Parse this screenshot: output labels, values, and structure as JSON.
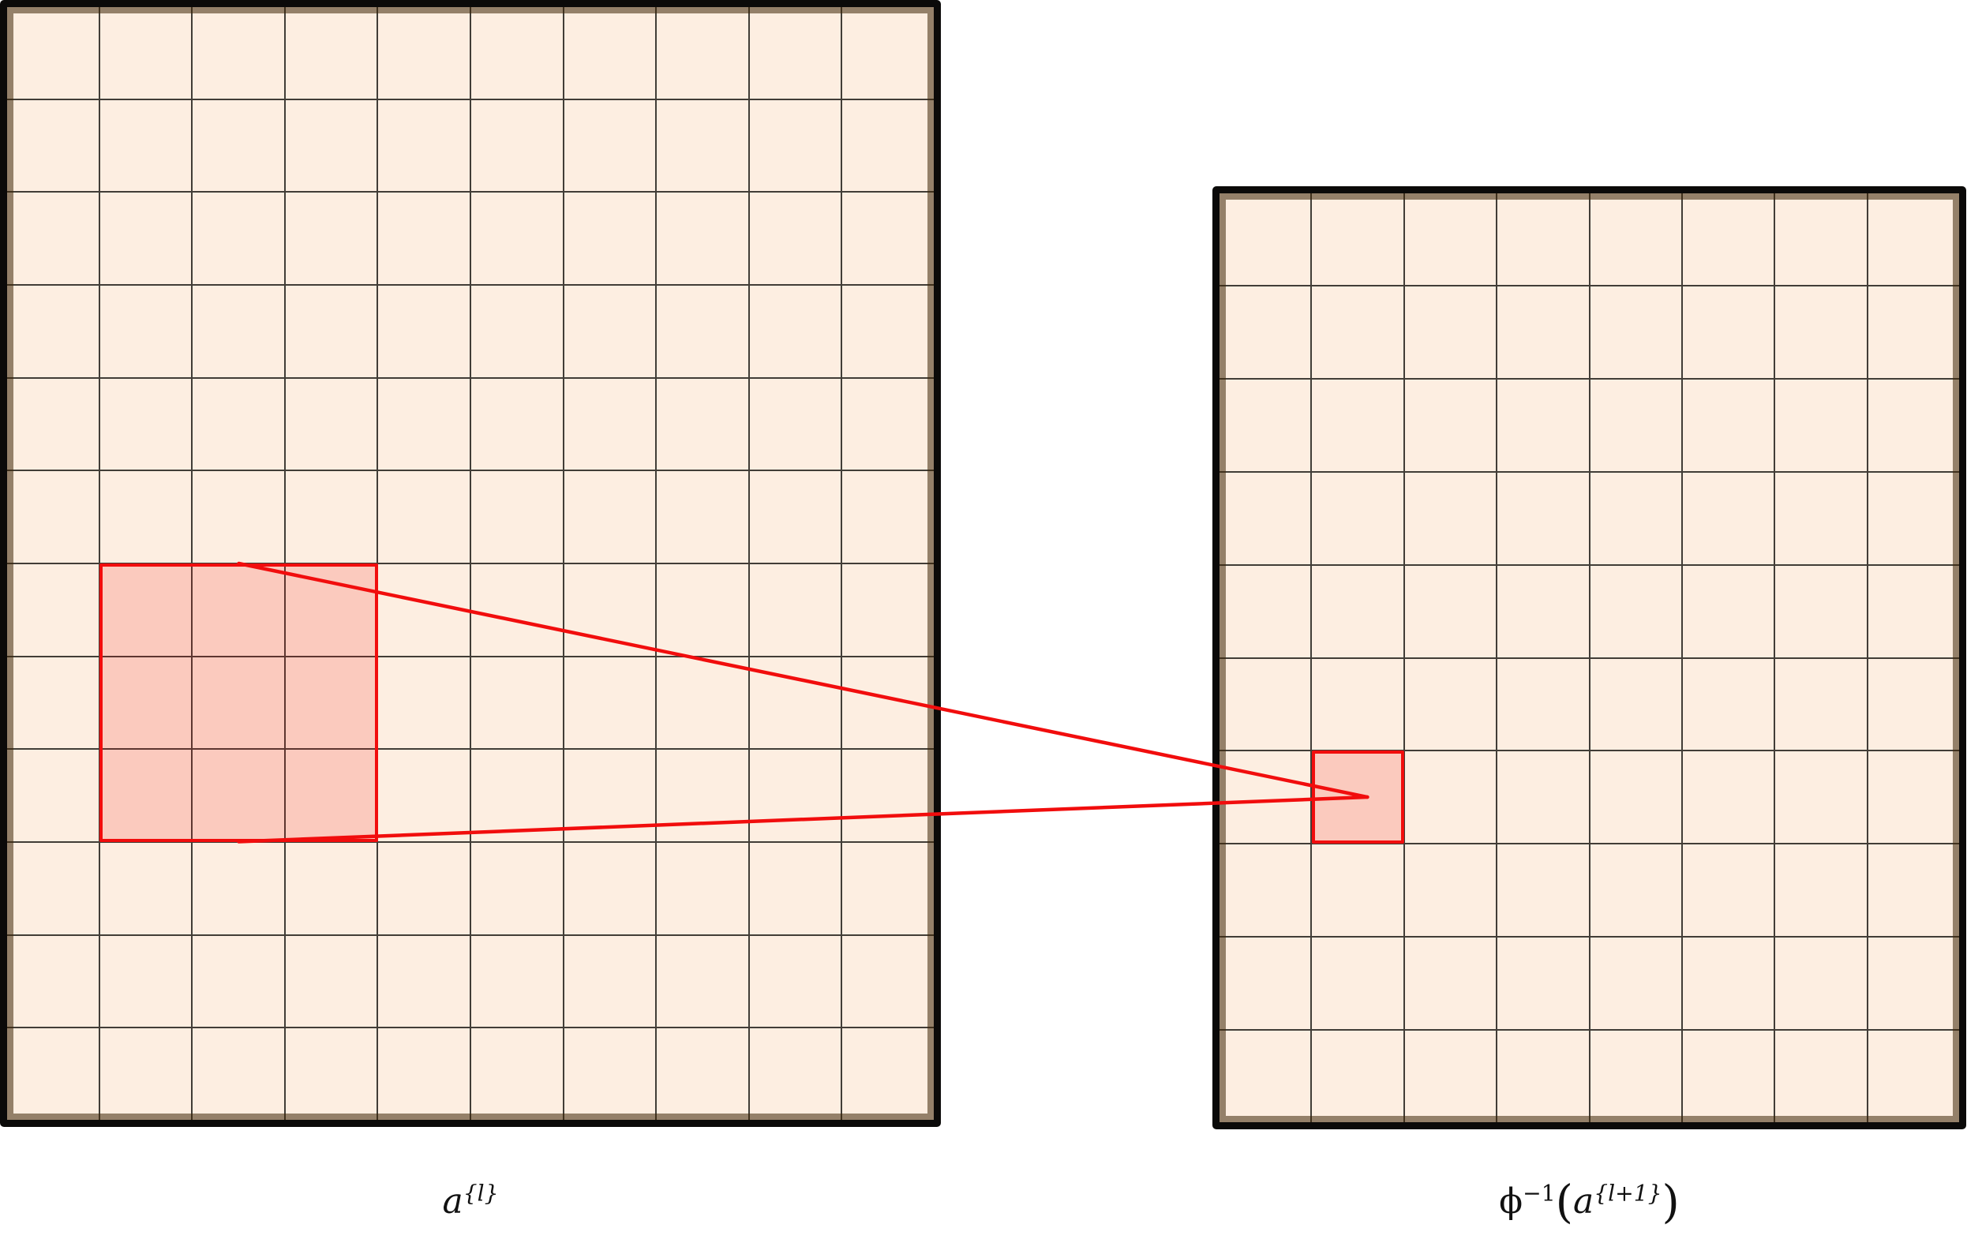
{
  "figure": {
    "type": "matrix-mapping-diagram",
    "background": "#ffffff",
    "colors": {
      "cell_fill": "#fdeee1",
      "grid_line": "#413d37",
      "frame": "#0b0a09",
      "frame_inner_shadow": "rgba(62,38,8,0.55)",
      "highlight_stroke": "#f10d0d",
      "highlight_fill": "rgba(245,20,15,0.16)",
      "line_color": "#f10d0d"
    },
    "left_matrix": {
      "cols": 10,
      "rows": 12,
      "highlight": {
        "col_start": 1,
        "row_start": 6,
        "col_span": 3,
        "row_span": 3
      },
      "label": {
        "base": "a",
        "sup": "{l}"
      }
    },
    "right_matrix": {
      "cols": 8,
      "rows": 10,
      "highlight": {
        "col_start": 1,
        "row_start": 6,
        "col_span": 1,
        "row_span": 1
      },
      "label": {
        "phi": "ϕ",
        "phi_sup": "−1",
        "open": "(",
        "base": "a",
        "sup": "{l+1}",
        "close": ")"
      }
    },
    "mapping": {
      "connects": "left-highlight-region to right-highlight-cell",
      "line_width": 4.5,
      "line_count": 2
    }
  }
}
